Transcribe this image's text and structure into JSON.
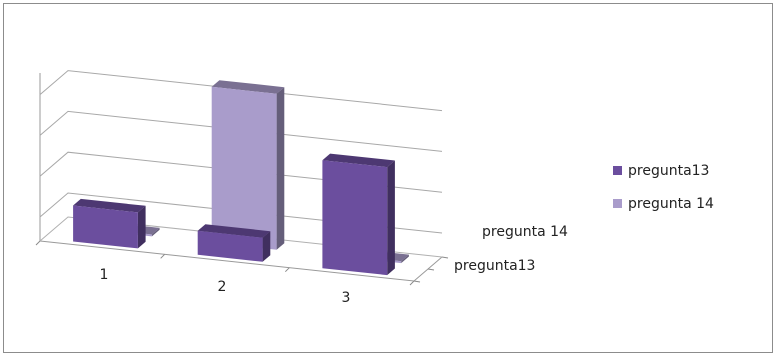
{
  "chart_data": {
    "type": "bar",
    "title": "",
    "xlabel": "",
    "ylabel": "",
    "grid": true,
    "legend_position": "right",
    "categories": [
      "1",
      "2",
      "3"
    ],
    "depth_categories": [
      "pregunta13",
      "pregunta 14"
    ],
    "series": [
      {
        "name": "pregunta13",
        "color": "#6b4e9e",
        "values": [
          1.5,
          1.0,
          4.5
        ]
      },
      {
        "name": "pregunta 14",
        "color": "#a99ccb",
        "values": [
          0,
          6.5,
          0
        ]
      }
    ],
    "ylim": [
      0,
      7
    ]
  }
}
